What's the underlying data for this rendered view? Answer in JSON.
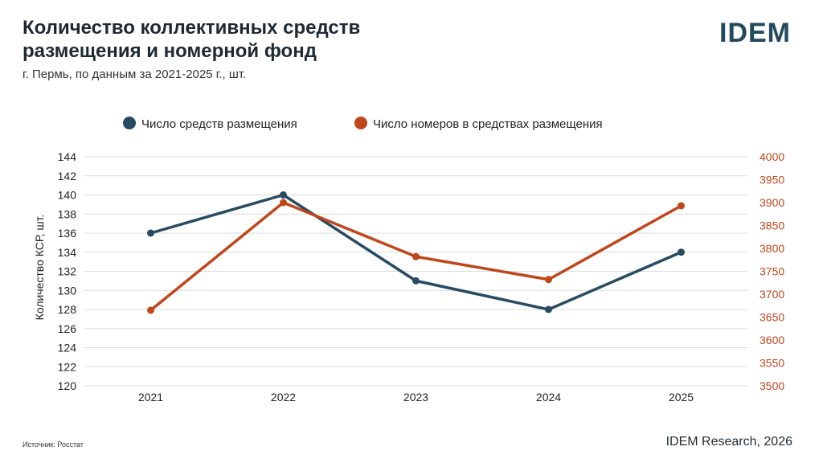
{
  "header": {
    "title_line1": "Количество коллективных средств",
    "title_line2": "размещения и номерной фонд",
    "subtitle": "г. Пермь, по данным за 2021-2025 г., шт.",
    "logo": "IDEM"
  },
  "footer": {
    "source": "Источник: Росстат",
    "credit": "IDEM Research, 2026"
  },
  "chart_data": {
    "type": "line",
    "categories": [
      "2021",
      "2022",
      "2023",
      "2024",
      "2025"
    ],
    "series": [
      {
        "name": "Число средств размещения",
        "axis": "left",
        "color": "#264b62",
        "values": [
          136,
          140,
          131,
          128,
          134
        ]
      },
      {
        "name": "Число номеров в средствах размещения",
        "axis": "right",
        "color": "#c0461b",
        "values": [
          3665,
          3900,
          3782,
          3732,
          3893
        ]
      }
    ],
    "ylabel": "Количество КСР, шт.",
    "ylim_left": [
      120,
      144
    ],
    "yticks_left": [
      "144",
      "142",
      "140",
      "138",
      "136",
      "134",
      "132",
      "130",
      "128",
      "126",
      "124",
      "122",
      "120"
    ],
    "ylim_right": [
      3500,
      4000
    ],
    "yticks_right": [
      "4000",
      "3950",
      "3900",
      "3850",
      "3800",
      "3750",
      "3700",
      "3650",
      "3600",
      "3550",
      "3500"
    ],
    "grid": true,
    "legend": "top"
  }
}
